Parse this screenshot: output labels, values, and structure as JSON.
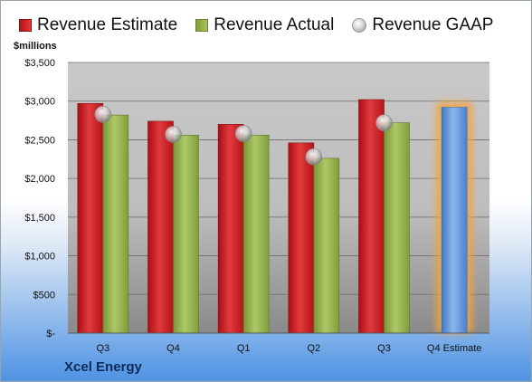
{
  "legend": {
    "estimate": "Revenue Estimate",
    "actual": "Revenue Actual",
    "gaap": "Revenue GAAP"
  },
  "unit_label": "$millions",
  "company": "Xcel Energy",
  "colors": {
    "estimate": "#c81e22",
    "actual": "#93b04a",
    "gaap": "#bfbfbf",
    "forecast": "#5f93d6",
    "forecast_glow": "#f4a340"
  },
  "chart_data": {
    "type": "bar",
    "categories": [
      "Q3",
      "Q4",
      "Q1",
      "Q2",
      "Q3",
      "Q4 Estimate"
    ],
    "ylim": [
      0,
      3500
    ],
    "ytick_values": [
      0,
      500,
      1000,
      1500,
      2000,
      2500,
      3000,
      3500
    ],
    "ytick_labels": [
      "$-",
      "$500",
      "$1,000",
      "$1,500",
      "$2,000",
      "$2,500",
      "$3,000",
      "$3,500"
    ],
    "grid": true,
    "legend_position": "top",
    "series": [
      {
        "name": "Revenue Estimate",
        "values": [
          2970,
          2740,
          2700,
          2460,
          3020,
          2920
        ]
      },
      {
        "name": "Revenue Actual",
        "values": [
          2820,
          2560,
          2560,
          2260,
          2720,
          null
        ]
      },
      {
        "name": "Revenue GAAP",
        "values": [
          2830,
          2570,
          2580,
          2280,
          2720,
          null
        ]
      }
    ]
  }
}
